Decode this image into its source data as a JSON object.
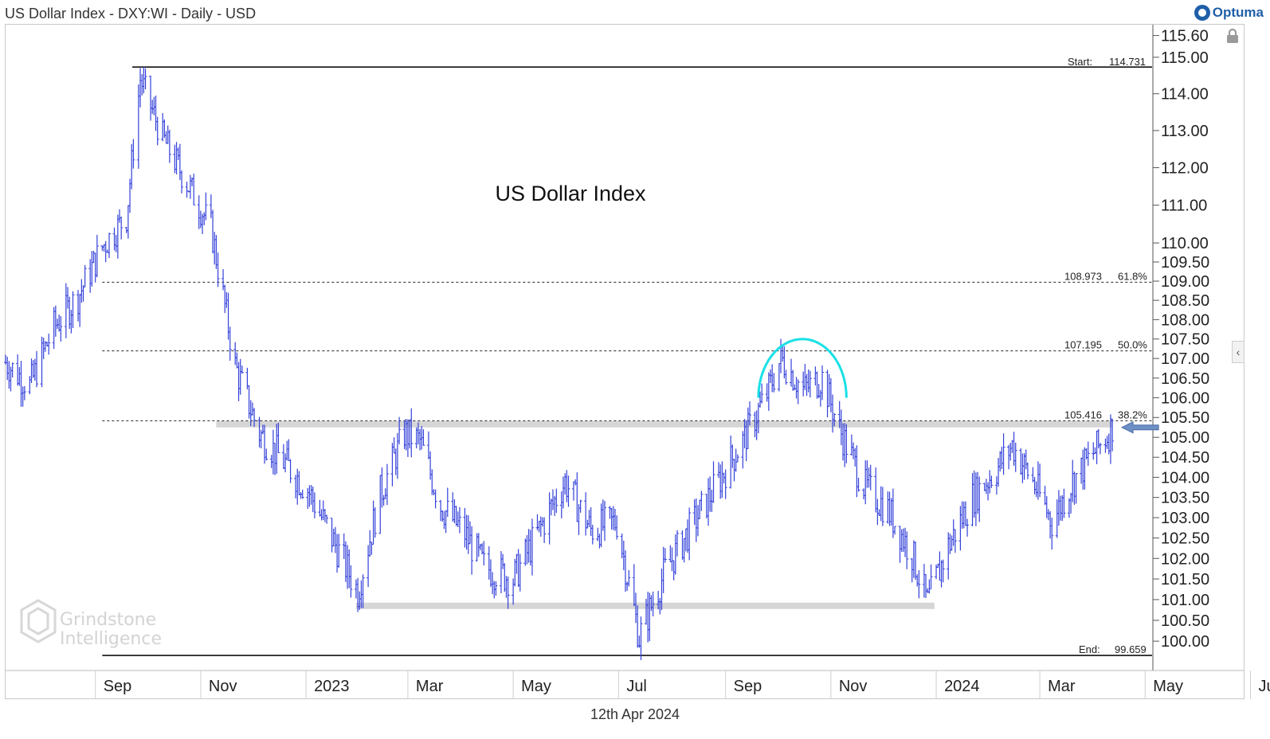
{
  "header": {
    "title": "US Dollar Index - DXY:WI - Daily - USD",
    "brand": "Optuma"
  },
  "footer": {
    "date": "12th Apr 2024"
  },
  "watermark": {
    "line1": "Grindstone",
    "line2": "Intelligence"
  },
  "annotation": {
    "label": "US Dollar Index"
  },
  "colors": {
    "price": "#3340d9",
    "arc": "#19e0e6",
    "arrow": "#6d8fc4",
    "band": "#d6d6d6",
    "lock": "#9a9a9a"
  },
  "icons": [
    "optuma-logo-icon",
    "lock-icon",
    "chevron-left-icon",
    "arrow-left-icon",
    "grindstone-logo-icon"
  ],
  "chart_data": {
    "type": "bar",
    "style": "ohlc-daily",
    "title": "US Dollar Index - DXY:WI - Daily - USD",
    "ylim": [
      99.3,
      115.9
    ],
    "yticks": [
      "115.60",
      "115.00",
      "114.00",
      "113.00",
      "112.00",
      "111.00",
      "110.00",
      "109.50",
      "109.00",
      "108.50",
      "108.00",
      "107.50",
      "107.00",
      "106.50",
      "106.00",
      "105.50",
      "105.00",
      "104.50",
      "104.00",
      "103.50",
      "103.00",
      "102.50",
      "102.00",
      "101.50",
      "101.00",
      "100.50",
      "100.00"
    ],
    "xticks": [
      "Sep",
      "Nov",
      "2023",
      "Mar",
      "May",
      "Jul",
      "Sep",
      "Nov",
      "2024",
      "Mar",
      "May",
      "Jul"
    ],
    "xtick_dates": [
      "2022-09-01",
      "2022-11-01",
      "2023-01-01",
      "2023-03-01",
      "2023-05-01",
      "2023-07-01",
      "2023-09-01",
      "2023-11-01",
      "2024-01-01",
      "2024-03-01",
      "2024-05-01",
      "2024-07-01"
    ],
    "x_range": [
      "2022-07-11",
      "2024-09-02"
    ],
    "close_series_dates": [
      "2022-07-11",
      "2022-07-25",
      "2022-08-08",
      "2022-08-22",
      "2022-09-05",
      "2022-09-19",
      "2022-09-27",
      "2022-10-10",
      "2022-10-24",
      "2022-11-07",
      "2022-11-21",
      "2022-12-05",
      "2022-12-19",
      "2023-01-02",
      "2023-01-16",
      "2023-01-31",
      "2023-02-13",
      "2023-02-27",
      "2023-03-08",
      "2023-03-20",
      "2023-04-03",
      "2023-04-14",
      "2023-05-01",
      "2023-05-15",
      "2023-05-31",
      "2023-06-15",
      "2023-06-30",
      "2023-07-13",
      "2023-07-28",
      "2023-08-14",
      "2023-08-28",
      "2023-09-11",
      "2023-09-25",
      "2023-10-03",
      "2023-10-16",
      "2023-10-27",
      "2023-11-06",
      "2023-11-20",
      "2023-12-04",
      "2023-12-18",
      "2023-12-27",
      "2024-01-08",
      "2024-01-22",
      "2024-02-05",
      "2024-02-14",
      "2024-02-26",
      "2024-03-08",
      "2024-03-20",
      "2024-04-01",
      "2024-04-10",
      "2024-04-12"
    ],
    "close_series_values": [
      106.9,
      106.3,
      107.8,
      108.6,
      109.9,
      110.7,
      114.4,
      112.8,
      111.6,
      110.4,
      106.8,
      105.1,
      104.4,
      103.7,
      102.5,
      101.2,
      103.6,
      105.1,
      104.9,
      103.3,
      102.6,
      101.8,
      101.5,
      102.6,
      103.9,
      102.7,
      102.9,
      100.1,
      101.7,
      102.9,
      103.9,
      104.9,
      106.1,
      107.0,
      106.2,
      106.5,
      105.2,
      103.8,
      103.2,
      102.1,
      100.9,
      102.3,
      103.5,
      104.2,
      104.8,
      103.9,
      102.9,
      103.9,
      104.6,
      105.1,
      105.3
    ],
    "series": [
      {
        "name": "DXY:WI",
        "values": [
          106.9,
          106.3,
          107.8,
          108.6,
          109.9,
          110.7,
          114.4,
          112.8,
          111.6,
          110.4,
          106.8,
          105.1,
          104.4,
          103.7,
          102.5,
          101.2,
          103.6,
          105.1,
          104.9,
          103.3,
          102.6,
          101.8,
          101.5,
          102.6,
          103.9,
          102.7,
          102.9,
          100.1,
          101.7,
          102.9,
          103.9,
          104.9,
          106.1,
          107.0,
          106.2,
          106.5,
          105.2,
          103.8,
          103.2,
          102.1,
          100.9,
          102.3,
          103.5,
          104.2,
          104.8,
          103.9,
          102.9,
          103.9,
          104.6,
          105.1,
          105.3
        ]
      }
    ],
    "fibonacci": {
      "start": {
        "label": "Start:",
        "value": "114.731",
        "date": "2022-09-27"
      },
      "end": {
        "label": "End:",
        "value": "99.659",
        "date": "2023-07-14"
      },
      "levels": [
        {
          "price": "108.973",
          "pct": "61.8%"
        },
        {
          "price": "107.195",
          "pct": "50.0%"
        },
        {
          "price": "105.416",
          "pct": "38.2%"
        }
      ]
    },
    "bands": [
      {
        "value": 105.33,
        "from": "2022-11-10",
        "to": "2024-04-12"
      },
      {
        "value": 100.85,
        "from": "2023-01-30",
        "to": "2023-12-31"
      }
    ],
    "arc": {
      "from": "2023-09-20",
      "to": "2023-11-10",
      "base": 106.0,
      "peak": 107.5
    },
    "arrow": {
      "value": 105.25,
      "date": "2024-04-12"
    },
    "grid": false,
    "legend": "none"
  }
}
